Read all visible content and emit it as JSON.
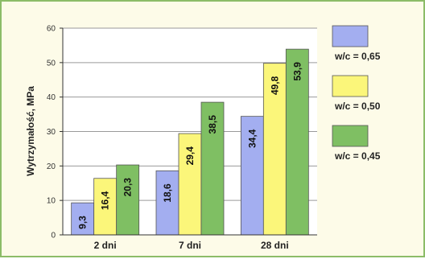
{
  "chart_data": {
    "type": "bar",
    "categories": [
      "2 dni",
      "7 dni",
      "28 dni"
    ],
    "series": [
      {
        "name": "w/c = 0,65",
        "values": [
          9.3,
          18.6,
          34.4
        ],
        "labels": [
          "9,3",
          "18,6",
          "34,4"
        ],
        "color": "#a3aef0"
      },
      {
        "name": "w/c = 0,50",
        "values": [
          16.4,
          29.4,
          49.8
        ],
        "labels": [
          "16,4",
          "29,4",
          "49,8"
        ],
        "color": "#fbf67a"
      },
      {
        "name": "w/c = 0,45",
        "values": [
          20.3,
          38.5,
          53.9
        ],
        "labels": [
          "20,3",
          "38,5",
          "53,9"
        ],
        "color": "#7fbf63"
      }
    ],
    "title": "",
    "xlabel": "",
    "ylabel": "Wytrzymałość, MPa",
    "ylim": [
      0,
      60
    ],
    "yticks": [
      0,
      10,
      20,
      30,
      40,
      50,
      60
    ],
    "grid": true,
    "legend_position": "right"
  },
  "colors": {
    "background": "#fdfbe8",
    "border": "#8cbc68",
    "plot_background": "#ffffff"
  }
}
